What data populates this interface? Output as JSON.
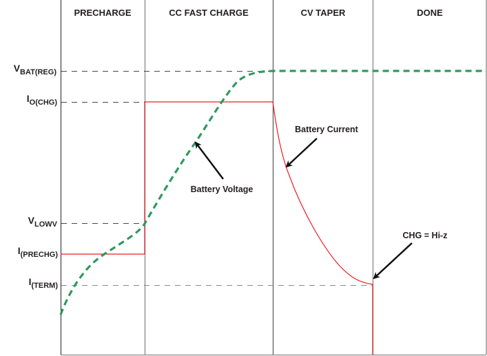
{
  "phases": [
    "PRECHARGE",
    "CC FAST CHARGE",
    "CV TAPER",
    "DONE"
  ],
  "levels": [
    {
      "main": "V",
      "sub": "BAT(REG)"
    },
    {
      "main": "I",
      "sub": "O(CHG)"
    },
    {
      "main": "V",
      "sub": "LOWV"
    },
    {
      "main": "I",
      "sub": "(PRECHG)"
    },
    {
      "main": "I",
      "sub": "(TERM)"
    }
  ],
  "annotations": {
    "voltage": "Battery Voltage",
    "current": "Battery Current",
    "done": "CHG = Hi-z"
  },
  "colors": {
    "voltage": "#2e9a5e",
    "current": "#ee1c24",
    "frame": "#231f20",
    "dash": "#555555"
  }
}
